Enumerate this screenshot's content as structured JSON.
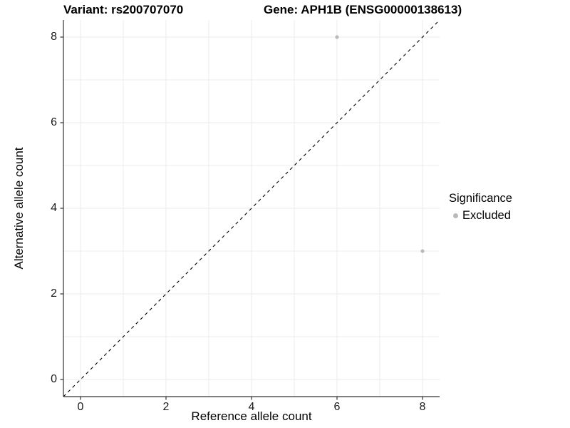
{
  "figure": {
    "title_left": "Variant: rs200707070",
    "title_right": "Gene: APH1B (ENSG00000138613)"
  },
  "chart_data": {
    "type": "scatter",
    "title": "Variant: rs200707070   Gene: APH1B (ENSG00000138613)",
    "xlabel": "Reference allele count",
    "ylabel": "Alternative allele count",
    "xlim": [
      -0.4,
      8.4
    ],
    "ylim": [
      -0.4,
      8.4
    ],
    "x_ticks": [
      0,
      2,
      4,
      6,
      8
    ],
    "y_ticks": [
      0,
      2,
      4,
      6,
      8
    ],
    "x_gridlines": [
      0,
      1,
      2,
      3,
      4,
      5,
      6,
      7,
      8
    ],
    "y_gridlines": [
      0,
      1,
      2,
      3,
      4,
      5,
      6,
      7,
      8
    ],
    "grid": true,
    "series": [
      {
        "name": "Excluded",
        "marker": "circle",
        "color": "#b9b9b9",
        "points": [
          {
            "x": 6,
            "y": 8
          },
          {
            "x": 8,
            "y": 3
          }
        ]
      }
    ],
    "reference_line": {
      "type": "identity",
      "equation": "y = x",
      "style": "dashed",
      "color": "#000000",
      "from": [
        -0.4,
        -0.4
      ],
      "to": [
        8.4,
        8.4
      ]
    },
    "legend": {
      "title": "Significance",
      "position": "right",
      "entries": [
        {
          "label": "Excluded",
          "color": "#b9b9b9"
        }
      ]
    }
  },
  "colors": {
    "background": "#ffffff",
    "gridline": "#ebebeb",
    "axis_line": "#333333",
    "tick_mark": "#333333",
    "tick_text": "#1a1a1a",
    "point": "#b9b9b9",
    "dashed_line": "#000000"
  }
}
